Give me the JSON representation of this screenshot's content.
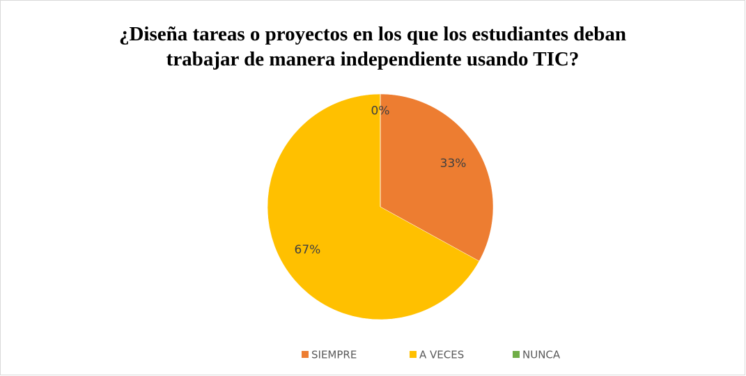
{
  "chart_data": {
    "type": "pie",
    "title": [
      "¿Diseña tareas o proyectos en los que los estudiantes deban",
      "trabajar de manera independiente usando TIC?"
    ],
    "categories": [
      "SIEMPRE",
      "A VECES",
      "NUNCA"
    ],
    "values": [
      33,
      67,
      0
    ],
    "value_labels": [
      "33%",
      "67%",
      "0%"
    ],
    "colors": [
      "#ED7D31",
      "#FFC000",
      "#70AD47"
    ],
    "legend": "bottom"
  }
}
